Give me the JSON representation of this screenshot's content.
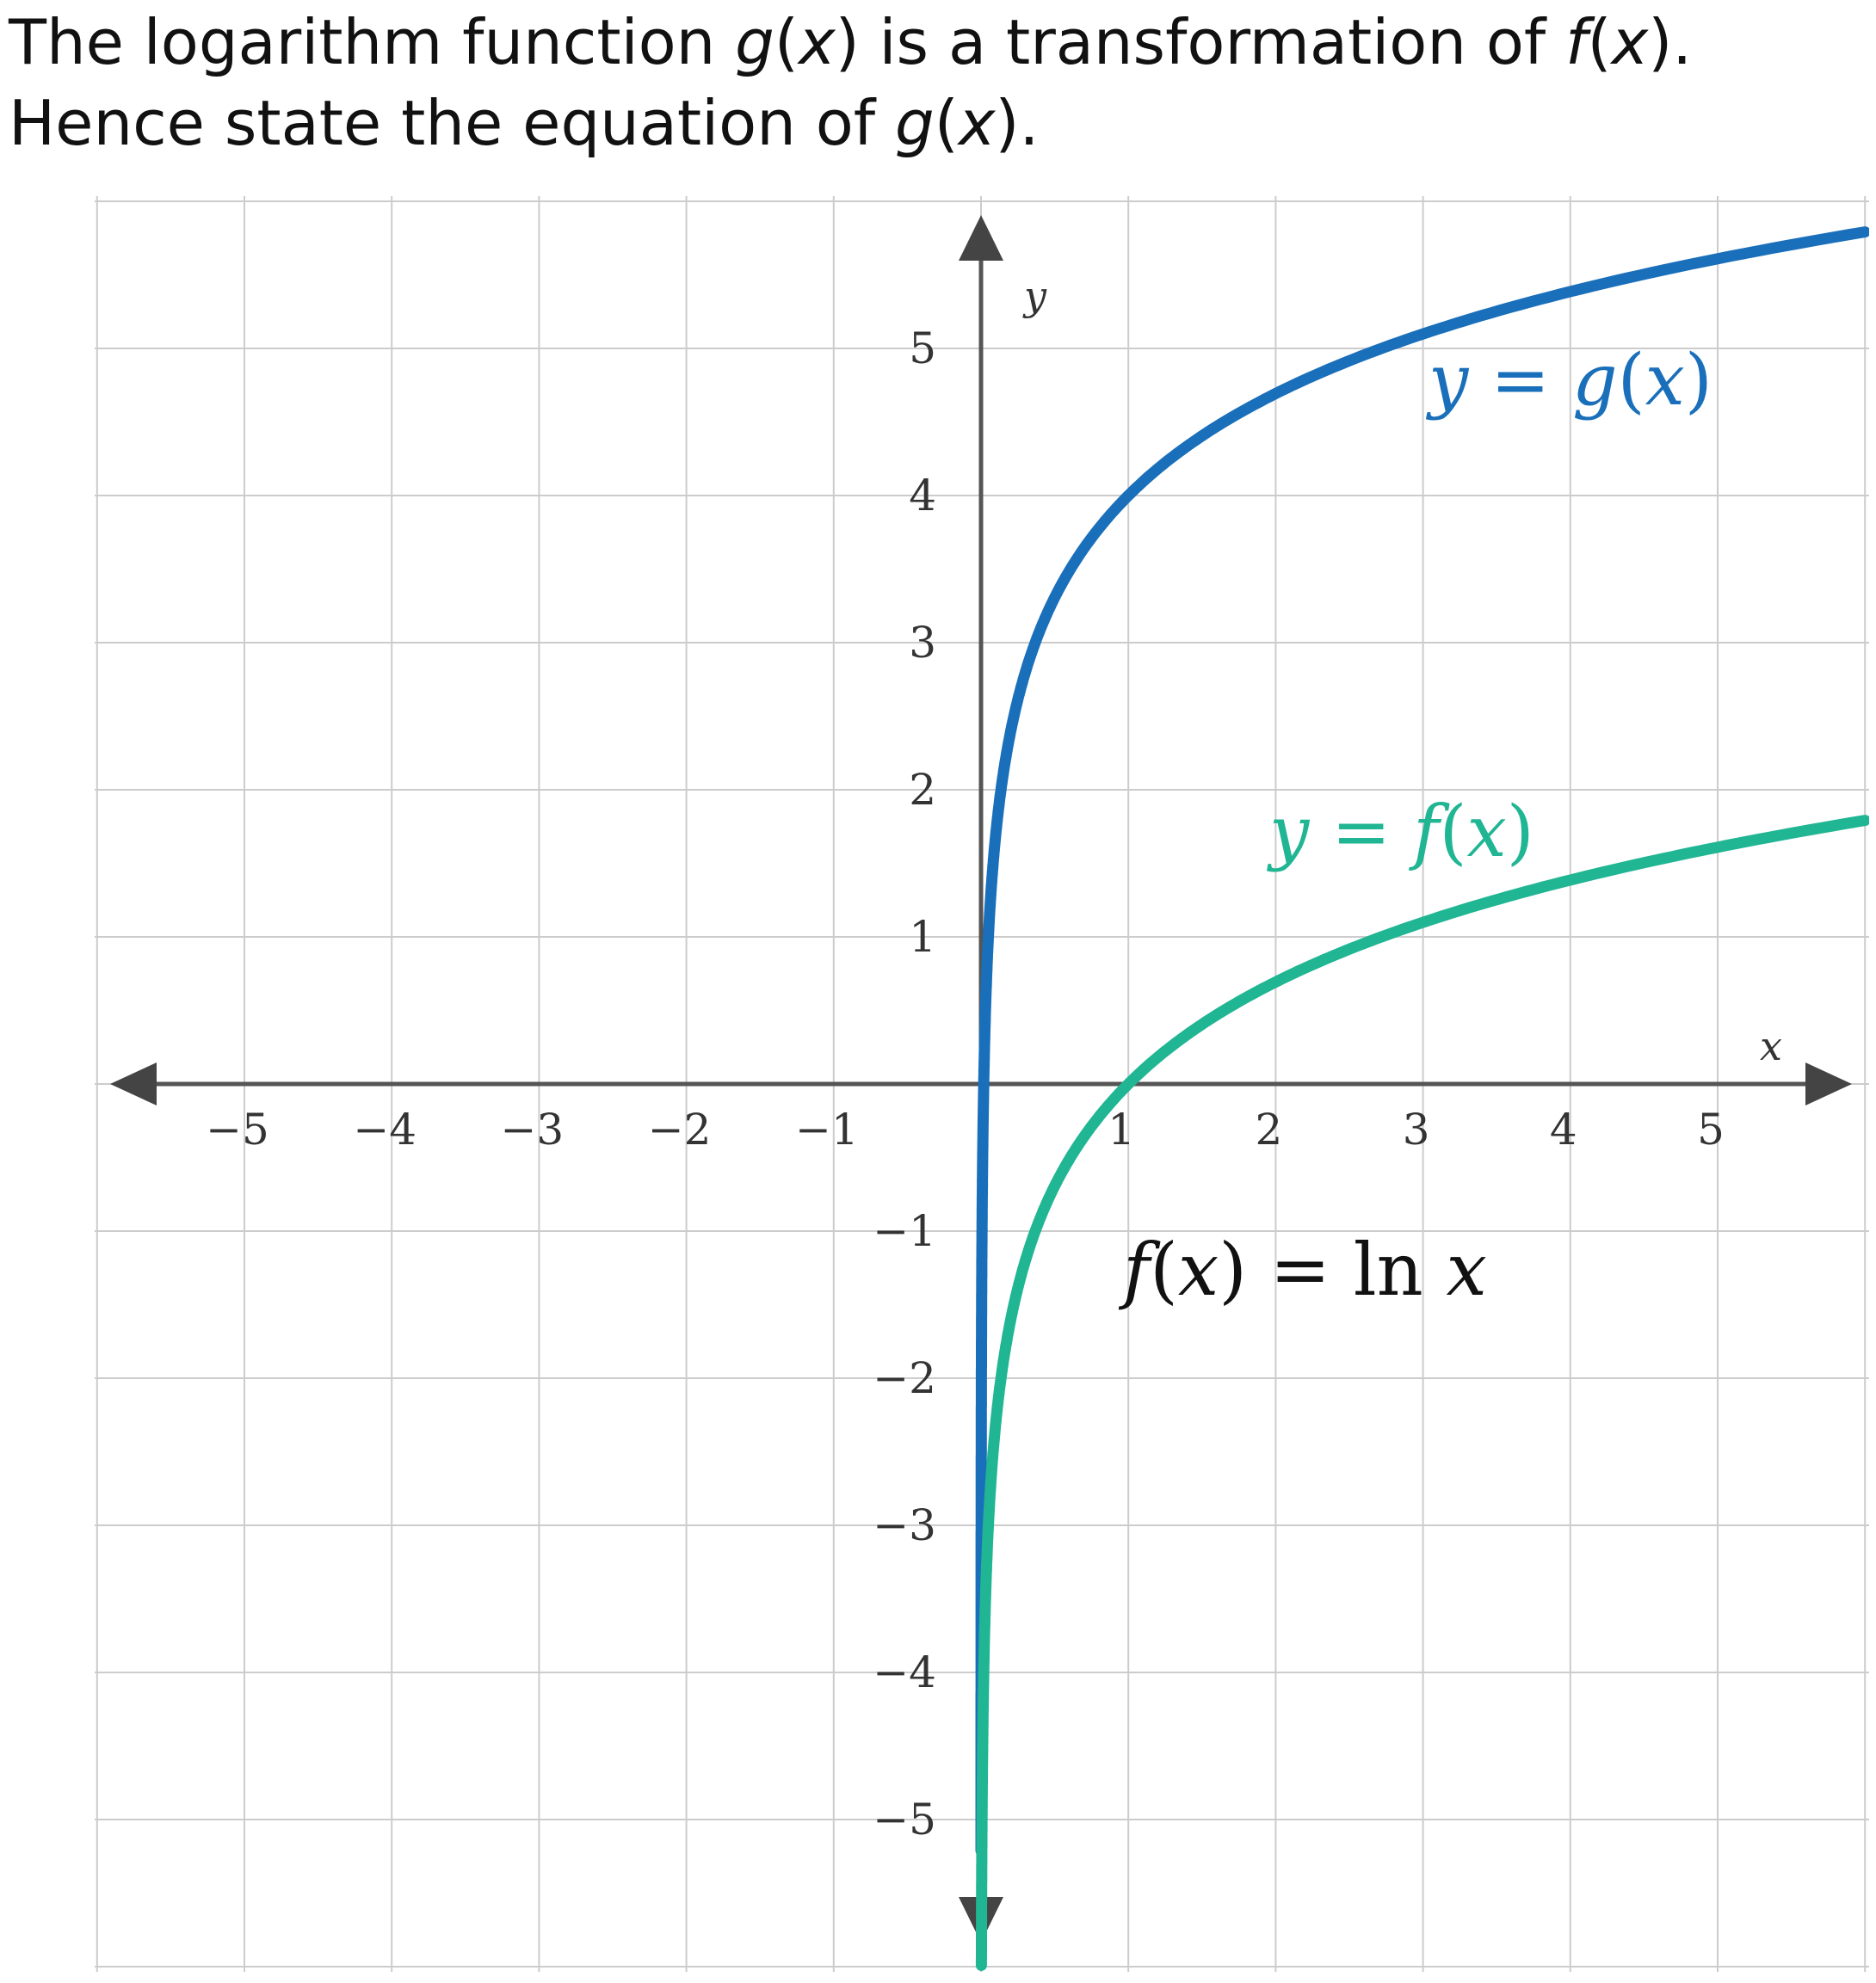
{
  "question": {
    "line1": {
      "t1": "The logarithm function ",
      "g": "g",
      "p1": "(",
      "x1": "x",
      "t2": ") is a transformation of ",
      "f": "f",
      "p2": "(",
      "x2": "x",
      "p3": ")."
    },
    "line2": {
      "t1": "Hence state the equation of ",
      "g": "g",
      "p1": "(",
      "x": "x",
      "p2": ")."
    }
  },
  "colors": {
    "g_curve": "#1a6fba",
    "f_curve": "#20b593",
    "grid": "#cccccc",
    "axis": "#555555"
  },
  "chart_data": {
    "type": "line",
    "xlim": [
      -6,
      6
    ],
    "ylim": [
      -6,
      6
    ],
    "grid": true,
    "xlabel": "x",
    "ylabel": "y",
    "x_ticks": [
      "−5",
      "−4",
      "−3",
      "−2",
      "−1",
      "1",
      "2",
      "3",
      "4",
      "5"
    ],
    "y_ticks": [
      "5",
      "4",
      "3",
      "2",
      "1",
      "−1",
      "−2",
      "−3",
      "−4",
      "−5"
    ],
    "series": [
      {
        "name": "y = g(x)",
        "color": "#1a6fba",
        "x": [
          0.0001,
          0.02,
          0.05,
          0.1,
          0.2,
          0.4,
          0.7,
          1,
          1.5,
          2,
          3,
          4,
          5,
          6
        ],
        "y": [
          -6,
          0.09,
          1.0,
          1.7,
          2.4,
          3.1,
          3.64,
          4.0,
          4.41,
          4.69,
          5.1,
          5.39,
          5.61,
          5.79
        ]
      },
      {
        "name": "y = f(x)",
        "color": "#20b593",
        "x": [
          0.0025,
          0.01,
          0.05,
          0.1,
          0.2,
          0.4,
          0.7,
          1,
          1.5,
          2,
          3,
          4,
          5,
          6
        ],
        "y": [
          -6,
          -4.61,
          -3.0,
          -2.3,
          -1.61,
          -0.92,
          -0.36,
          0,
          0.41,
          0.69,
          1.1,
          1.39,
          1.61,
          1.79
        ]
      }
    ],
    "annotations": [
      {
        "text": "y = g(x)",
        "color": "#1a6fba"
      },
      {
        "text": "y = f(x)",
        "color": "#20b593"
      },
      {
        "text": "f(x) = ln x",
        "color": "#111111"
      }
    ]
  }
}
